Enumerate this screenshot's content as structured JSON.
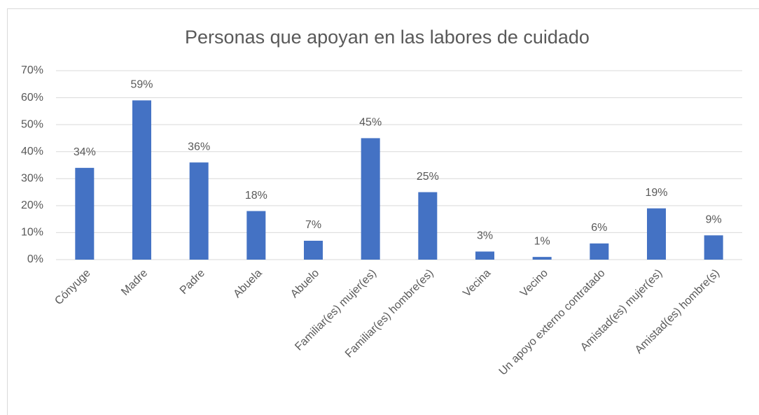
{
  "chart_data": {
    "type": "bar",
    "title": "Personas que apoyan en las labores de cuidado",
    "categories": [
      "Cónyuge",
      "Madre",
      "Padre",
      "Abuela",
      "Abuelo",
      "Familiar(es) mujer(es)",
      "Familiar(es) hombre(es)",
      "Vecina",
      "Vecino",
      "Un apoyo externo contratado",
      "Amistad(es) mujer(es)",
      "Amistad(es) hombre(s)"
    ],
    "values": [
      34,
      59,
      36,
      18,
      7,
      45,
      25,
      3,
      1,
      6,
      19,
      9
    ],
    "value_labels": [
      "34%",
      "59%",
      "36%",
      "18%",
      "7%",
      "45%",
      "25%",
      "3%",
      "1%",
      "6%",
      "19%",
      "9%"
    ],
    "color": "#4472c4",
    "ylim": [
      0,
      70
    ],
    "yticks": [
      {
        "value": 0,
        "label": "0%"
      },
      {
        "value": 10,
        "label": "10%"
      },
      {
        "value": 20,
        "label": "20%"
      },
      {
        "value": 30,
        "label": "30%"
      },
      {
        "value": 40,
        "label": "40%"
      },
      {
        "value": 50,
        "label": "50%"
      },
      {
        "value": 60,
        "label": "60%"
      },
      {
        "value": 70,
        "label": "70%"
      }
    ],
    "grid": true
  }
}
